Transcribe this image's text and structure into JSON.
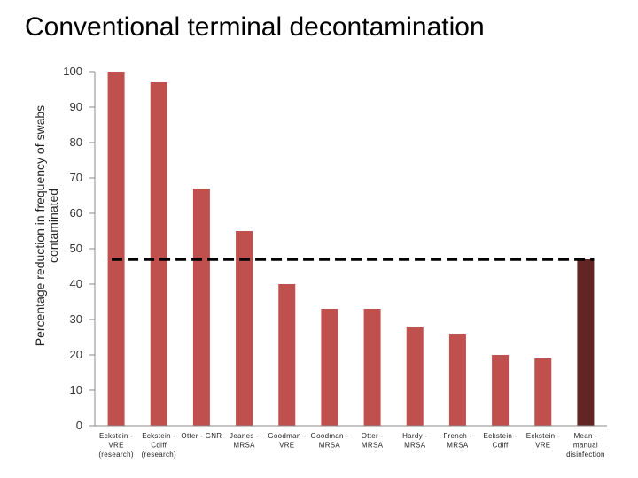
{
  "chart_data": {
    "type": "bar",
    "title": "Conventional terminal decontamination",
    "ylabel": "Percentage reduction in frequency of swabs contaminated",
    "ylabel_lines": [
      "Percentage reduction in frequency of swabs",
      "contaminated"
    ],
    "xlabel": "",
    "ylim": [
      0,
      100
    ],
    "yticks": [
      0,
      10,
      20,
      30,
      40,
      50,
      60,
      70,
      80,
      90,
      100
    ],
    "categories": [
      "Eckstein - VRE (research)",
      "Eckstein - Cdiff (research)",
      "Otter - GNR",
      "Jeanes - MRSA",
      "Goodman - VRE",
      "Goodman - MRSA",
      "Otter - MRSA",
      "Hardy - MRSA",
      "French - MRSA",
      "Eckstein - Cdiff",
      "Eckstein - VRE",
      "Mean - manual disinfection"
    ],
    "category_lines": [
      [
        "Eckstein -",
        "VRE",
        "(research)"
      ],
      [
        "Eckstein -",
        "Cdiff",
        "(research)"
      ],
      [
        "Otter - GNR"
      ],
      [
        "Jeanes -",
        "MRSA"
      ],
      [
        "Goodman -",
        "VRE"
      ],
      [
        "Goodman -",
        "MRSA"
      ],
      [
        "Otter -",
        "MRSA"
      ],
      [
        "Hardy -",
        "MRSA"
      ],
      [
        "French -",
        "MRSA"
      ],
      [
        "Eckstein -",
        "Cdiff"
      ],
      [
        "Eckstein -",
        "VRE"
      ],
      [
        "Mean -",
        "manual",
        "disinfection"
      ]
    ],
    "values": [
      100,
      97,
      67,
      55,
      40,
      33,
      33,
      28,
      26,
      20,
      19,
      47
    ],
    "mean_line": 47,
    "grid": false,
    "legend": "none",
    "colors": {
      "bar": "#c0504d",
      "mean_bar": "#632523",
      "mean_line": "#000000",
      "axis": "#888888"
    }
  }
}
